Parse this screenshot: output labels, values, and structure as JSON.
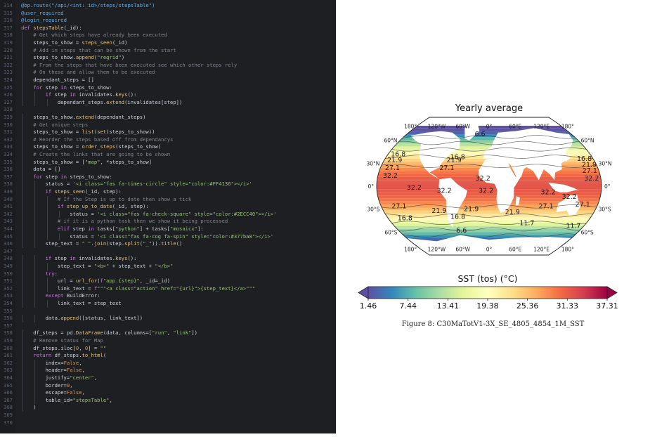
{
  "editor": {
    "lines": [
      {
        "no": "314",
        "indent": 0,
        "code": "@bp.route(\"/api/<int:_id>/steps/stepsTable\")"
      },
      {
        "no": "315",
        "indent": 0,
        "code": "@user_required"
      },
      {
        "no": "316",
        "indent": 0,
        "code": "@login_required"
      },
      {
        "no": "317",
        "indent": 0,
        "code": "def stepsTable(_id):"
      },
      {
        "no": "318",
        "indent": 1,
        "code": "# Get which steps have already been executed"
      },
      {
        "no": "319",
        "indent": 1,
        "code": "steps_to_show = steps_seen(_id)"
      },
      {
        "no": "320",
        "indent": 1,
        "code": "# Add in steps that can be shown from the start"
      },
      {
        "no": "321",
        "indent": 1,
        "code": "steps_to_show.append(\"regrid\")"
      },
      {
        "no": "322",
        "indent": 1,
        "code": "# From the steps that have been executed see which other steps rely"
      },
      {
        "no": "323",
        "indent": 1,
        "code": "# On these and allow them to be executed"
      },
      {
        "no": "324",
        "indent": 1,
        "code": "dependant_steps = []"
      },
      {
        "no": "325",
        "indent": 1,
        "code": "for step in steps_to_show:"
      },
      {
        "no": "326",
        "indent": 2,
        "code": "if step in invalidates.keys():"
      },
      {
        "no": "327",
        "indent": 3,
        "code": "dependant_steps.extend(invalidates[step])"
      },
      {
        "no": "328",
        "indent": 0,
        "code": ""
      },
      {
        "no": "329",
        "indent": 1,
        "code": "steps_to_show.extend(dependant_steps)"
      },
      {
        "no": "330",
        "indent": 1,
        "code": "# Get unique steps"
      },
      {
        "no": "331",
        "indent": 1,
        "code": "steps_to_show = list(set(steps_to_show))"
      },
      {
        "no": "332",
        "indent": 1,
        "code": "# Reorder the steps based off from dependancys"
      },
      {
        "no": "333",
        "indent": 1,
        "code": "steps_to_show = order_steps(steps_to_show)"
      },
      {
        "no": "334",
        "indent": 1,
        "code": "# Create the links that are going to be shown"
      },
      {
        "no": "335",
        "indent": 1,
        "code": "steps_to_show = [\"map\", *steps_to_show]"
      },
      {
        "no": "336",
        "indent": 1,
        "code": "data = []"
      },
      {
        "no": "337",
        "indent": 1,
        "code": "for step in steps_to_show:"
      },
      {
        "no": "338",
        "indent": 2,
        "code": "status = '<i class=\"fas fa-times-circle\" style=\"color:#FF4136\"></i>'"
      },
      {
        "no": "339",
        "indent": 2,
        "code": "if steps_seen(_id, step):"
      },
      {
        "no": "340",
        "indent": 3,
        "code": "# If the Step is up to date then show a tick"
      },
      {
        "no": "341",
        "indent": 3,
        "code": "if step_up_to_date(_id, step):"
      },
      {
        "no": "342",
        "indent": 4,
        "code": "status = '<i class=\"fas fa-check-square\" style=\"color:#2ECC40\"></i>'"
      },
      {
        "no": "343",
        "indent": 3,
        "code": "# if it is a python task then we show it being processed"
      },
      {
        "no": "344",
        "indent": 3,
        "code": "elif step in tasks[\"python\"] + tasks[\"mosaicx\"]:"
      },
      {
        "no": "345",
        "indent": 4,
        "code": "status = '<i class=\"fas fa-cog fa-spin\" style=\"color:#377ba8\"></i>'"
      },
      {
        "no": "346",
        "indent": 2,
        "code": "step_text = \" \".join(step.split(\"_\")).title()"
      },
      {
        "no": "347",
        "indent": 0,
        "code": ""
      },
      {
        "no": "348",
        "indent": 2,
        "code": "if step in invalidates.keys():"
      },
      {
        "no": "349",
        "indent": 3,
        "code": "step_text = \"<b>\" + step_text + \"</b>\""
      },
      {
        "no": "350",
        "indent": 2,
        "code": "try:"
      },
      {
        "no": "351",
        "indent": 3,
        "code": "url = url_for(f\"app.{step}\", _id=_id)"
      },
      {
        "no": "352",
        "indent": 3,
        "code": "link_text = f\"\"\"<a class=\"action\" href=\"{url}\">{step_text}</a>\"\"\""
      },
      {
        "no": "353",
        "indent": 2,
        "code": "except BuildError:"
      },
      {
        "no": "354",
        "indent": 3,
        "code": "link_text = step_text"
      },
      {
        "no": "355",
        "indent": 0,
        "code": ""
      },
      {
        "no": "356",
        "indent": 2,
        "code": "data.append([status, link_text])"
      },
      {
        "no": "357",
        "indent": 0,
        "code": ""
      },
      {
        "no": "358",
        "indent": 1,
        "code": "df_steps = pd.DataFrame(data, columns=[\"run\", \"link\"])"
      },
      {
        "no": "359",
        "indent": 1,
        "code": "# Remove status for Map"
      },
      {
        "no": "360",
        "indent": 1,
        "code": "df_steps.iloc[0, 0] = \"\""
      },
      {
        "no": "361",
        "indent": 1,
        "code": "return df_steps.to_html("
      },
      {
        "no": "362",
        "indent": 2,
        "code": "index=False,"
      },
      {
        "no": "363",
        "indent": 2,
        "code": "header=False,"
      },
      {
        "no": "364",
        "indent": 2,
        "code": "justify=\"center\","
      },
      {
        "no": "365",
        "indent": 2,
        "code": "border=0,"
      },
      {
        "no": "366",
        "indent": 2,
        "code": "escape=False,"
      },
      {
        "no": "367",
        "indent": 2,
        "code": "table_id=\"stepsTable\","
      },
      {
        "no": "368",
        "indent": 1,
        "code": ")"
      },
      {
        "no": "369",
        "indent": 0,
        "code": ""
      },
      {
        "no": "370",
        "indent": 0,
        "code": ""
      }
    ]
  },
  "chart_data": {
    "type": "heatmap",
    "title": "Yearly average",
    "projection": "robinson",
    "top_lon_labels": [
      "180°",
      "120°W",
      "60°W",
      "0°",
      "60°E",
      "120°E",
      "180°"
    ],
    "bottom_lon_labels": [
      "180°",
      "120°W",
      "60°W",
      "0°",
      "60°E",
      "120°E",
      "180°"
    ],
    "lat_labels": [
      "60°N",
      "30°N",
      "0°",
      "30°S",
      "60°S"
    ],
    "lat_values": [
      60,
      30,
      0,
      -30,
      -60
    ],
    "lon_values": [
      -180,
      -120,
      -60,
      0,
      60,
      120,
      180
    ],
    "contour_labels": [
      {
        "text": "6.6",
        "lon": -20,
        "lat": 68
      },
      {
        "text": "16.8",
        "lon": -55,
        "lat": 38
      },
      {
        "text": "21.9",
        "lon": -60,
        "lat": 34
      },
      {
        "text": "16.8",
        "lon": -162,
        "lat": 42
      },
      {
        "text": "21.9",
        "lon": -162,
        "lat": 34
      },
      {
        "text": "27.1",
        "lon": -160,
        "lat": 24
      },
      {
        "text": "32.2",
        "lon": -160,
        "lat": 14
      },
      {
        "text": "27.1",
        "lon": -70,
        "lat": 24
      },
      {
        "text": "32.2",
        "lon": -10,
        "lat": 10
      },
      {
        "text": "16.8",
        "lon": 165,
        "lat": 36
      },
      {
        "text": "21.9",
        "lon": 168,
        "lat": 28
      },
      {
        "text": "27.1",
        "lon": 165,
        "lat": 20
      },
      {
        "text": "32.2",
        "lon": 165,
        "lat": 10
      },
      {
        "text": "32.2",
        "lon": -120,
        "lat": -2
      },
      {
        "text": "32.2",
        "lon": -72,
        "lat": -6
      },
      {
        "text": "32.2",
        "lon": -5,
        "lat": -6
      },
      {
        "text": "32.2",
        "lon": 95,
        "lat": -8
      },
      {
        "text": "32.2",
        "lon": 130,
        "lat": -14
      },
      {
        "text": "27.1",
        "lon": -150,
        "lat": -26
      },
      {
        "text": "27.1",
        "lon": 95,
        "lat": -26
      },
      {
        "text": "27.1",
        "lon": 155,
        "lat": -24
      },
      {
        "text": "21.9",
        "lon": -85,
        "lat": -32
      },
      {
        "text": "21.9",
        "lon": -30,
        "lat": -30
      },
      {
        "text": "21.9",
        "lon": 40,
        "lat": -34
      },
      {
        "text": "16.8",
        "lon": -150,
        "lat": -42
      },
      {
        "text": "16.8",
        "lon": -55,
        "lat": -40
      },
      {
        "text": "11.7",
        "lon": 70,
        "lat": -48
      },
      {
        "text": "11.7",
        "lon": 160,
        "lat": -52
      },
      {
        "text": "6.6",
        "lon": -55,
        "lat": -58
      }
    ],
    "colorbar": {
      "label": "SST (tos) (°C)",
      "ticks": [
        "1.46",
        "7.44",
        "13.41",
        "19.38",
        "25.36",
        "31.33",
        "37.31"
      ],
      "min": 1.46,
      "max": 37.31,
      "colormap": "Spectral_r",
      "extend": "both"
    },
    "caption": "Figure 8: C30MaTotV1-3X_SE_4805_4854_1M_SST"
  }
}
